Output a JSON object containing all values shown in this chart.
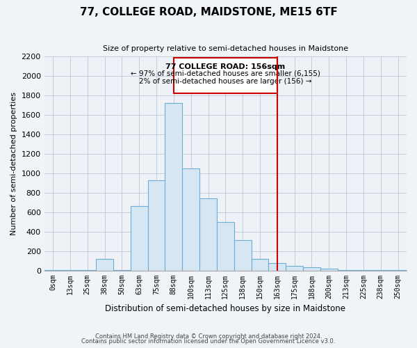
{
  "title": "77, COLLEGE ROAD, MAIDSTONE, ME15 6TF",
  "subtitle": "Size of property relative to semi-detached houses in Maidstone",
  "xlabel": "Distribution of semi-detached houses by size in Maidstone",
  "ylabel": "Number of semi-detached properties",
  "bar_color": "#d6e6f2",
  "bar_edge_color": "#6baed6",
  "categories": [
    "0sqm",
    "13sqm",
    "25sqm",
    "38sqm",
    "50sqm",
    "63sqm",
    "75sqm",
    "88sqm",
    "100sqm",
    "113sqm",
    "125sqm",
    "138sqm",
    "150sqm",
    "163sqm",
    "175sqm",
    "188sqm",
    "200sqm",
    "213sqm",
    "225sqm",
    "238sqm",
    "250sqm"
  ],
  "values": [
    5,
    5,
    5,
    120,
    5,
    660,
    930,
    1720,
    1050,
    740,
    500,
    310,
    120,
    75,
    50,
    35,
    20,
    5,
    5,
    5,
    5
  ],
  "ylim": [
    0,
    2200
  ],
  "yticks": [
    0,
    200,
    400,
    600,
    800,
    1000,
    1200,
    1400,
    1600,
    1800,
    2000,
    2200
  ],
  "vline_color": "#cc0000",
  "annotation_title": "77 COLLEGE ROAD: 156sqm",
  "annotation_line1": "← 97% of semi-detached houses are smaller (6,155)",
  "annotation_line2": "2% of semi-detached houses are larger (156) →",
  "footnote1": "Contains HM Land Registry data © Crown copyright and database right 2024.",
  "footnote2": "Contains public sector information licensed under the Open Government Licence v3.0.",
  "background_color": "#f0f4f8",
  "plot_bg_color": "#eef2f7",
  "grid_color": "#c0ccd8"
}
